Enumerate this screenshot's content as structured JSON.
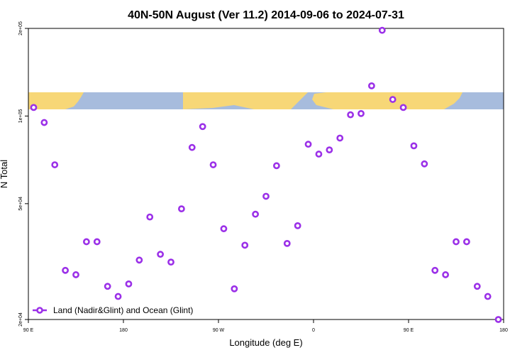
{
  "chart_data": {
    "type": "scatter",
    "title": "40N-50N August (Ver 11.2)   2014-09-06 to 2024-07-31",
    "xlabel": "Longitude (deg E)",
    "ylabel": "N Total",
    "xlim": [
      90,
      540
    ],
    "ylim": [
      20000,
      200000
    ],
    "y_scale": "log",
    "x_ticks": [
      {
        "value": 90,
        "label": "90 E"
      },
      {
        "value": 180,
        "label": "180"
      },
      {
        "value": 270,
        "label": "90 W"
      },
      {
        "value": 360,
        "label": "0"
      },
      {
        "value": 450,
        "label": "90 E"
      },
      {
        "value": 540,
        "label": "180"
      }
    ],
    "y_ticks": [
      {
        "value": 20000,
        "label": "2e+04"
      },
      {
        "value": 50000,
        "label": "5e+04"
      },
      {
        "value": 100000,
        "label": "1e+05"
      },
      {
        "value": 200000,
        "label": "2e+05"
      }
    ],
    "legend": {
      "position": "bottom-left",
      "label": "Land (Nadir&Glint) and Ocean (Glint)"
    },
    "series": [
      {
        "name": "Land (Nadir&Glint) and Ocean (Glint)",
        "color": "#9b30e8",
        "x": [
          95,
          105,
          115,
          125,
          135,
          145,
          155,
          165,
          175,
          185,
          195,
          205,
          215,
          225,
          235,
          245,
          255,
          265,
          275,
          285,
          295,
          305,
          315,
          325,
          335,
          345,
          355,
          365,
          375,
          385,
          395,
          405,
          415,
          425,
          435,
          445,
          455,
          465,
          475,
          485,
          495,
          505,
          515,
          525,
          535
        ],
        "y": [
          107000,
          95000,
          68000,
          29500,
          28500,
          37000,
          37000,
          26000,
          24000,
          26500,
          32000,
          45000,
          33500,
          31500,
          48000,
          78000,
          92000,
          68000,
          41000,
          25500,
          36000,
          46000,
          53000,
          67500,
          36500,
          42000,
          80000,
          74000,
          76500,
          84000,
          101000,
          102000,
          127000,
          197000,
          114000,
          107000,
          79000,
          68500,
          29500,
          28500,
          37000,
          37000,
          26000,
          24000,
          20000
        ]
      }
    ],
    "background_map": {
      "land_color": "#f7d777",
      "ocean_color": "#a7bcdd"
    }
  }
}
